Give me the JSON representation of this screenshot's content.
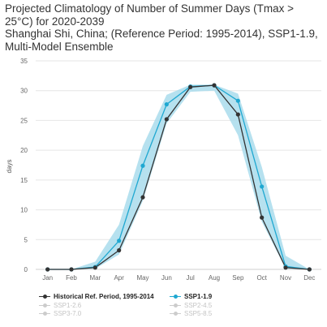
{
  "title_lines": [
    "Projected Climatology of Number of Summer Days (Tmax >",
    "25°C) for 2020-2039",
    "Shanghai Shi, China; (Reference Period: 1995-2014), SSP1-1.9,",
    "Multi-Model Ensemble"
  ],
  "colors": {
    "historical": "#333333",
    "ssp119": "#1fa8d1",
    "ssp119_band": "#a9dcec",
    "inactive": "#cccccc",
    "grid": "#e6e6e6"
  },
  "chart_data": {
    "type": "line",
    "categories": [
      "Jan",
      "Feb",
      "Mar",
      "Apr",
      "May",
      "Jun",
      "Jul",
      "Aug",
      "Sep",
      "Oct",
      "Nov",
      "Dec"
    ],
    "ylabel": "days",
    "ylim": [
      0,
      35
    ],
    "yticks": [
      0,
      5,
      10,
      15,
      20,
      25,
      30,
      35
    ],
    "grid": true,
    "legend_position": "bottom",
    "series": [
      {
        "name": "Historical Ref. Period, 1995-2014",
        "values": [
          0,
          0,
          0.3,
          3.2,
          12.1,
          25.2,
          30.6,
          30.9,
          26.0,
          8.7,
          0.3,
          0
        ],
        "color": "#333333"
      },
      {
        "name": "SSP1-1.9",
        "values": [
          0,
          0,
          0.4,
          4.8,
          17.4,
          27.7,
          30.7,
          30.9,
          28.3,
          13.9,
          0.5,
          0
        ],
        "color": "#1fa8d1",
        "band_low": [
          0,
          0,
          0.1,
          2.5,
          11.5,
          24.5,
          29.8,
          30.0,
          22.5,
          8.0,
          0.1,
          0
        ],
        "band_high": [
          0,
          0,
          1.3,
          7.5,
          20.7,
          29.3,
          31.0,
          31.0,
          29.5,
          17.2,
          2.3,
          0
        ]
      }
    ]
  },
  "legend": {
    "items": [
      {
        "label": "Historical Ref. Period, 1995-2014",
        "active": true,
        "color": "#333333"
      },
      {
        "label": "SSP1-1.9",
        "active": true,
        "color": "#1fa8d1"
      },
      {
        "label": "SSP1-2.6",
        "active": false,
        "color": "#cccccc"
      },
      {
        "label": "SSP2-4.5",
        "active": false,
        "color": "#cccccc"
      },
      {
        "label": "SSP3-7.0",
        "active": false,
        "color": "#cccccc"
      },
      {
        "label": "SSP5-8.5",
        "active": false,
        "color": "#cccccc"
      }
    ]
  }
}
